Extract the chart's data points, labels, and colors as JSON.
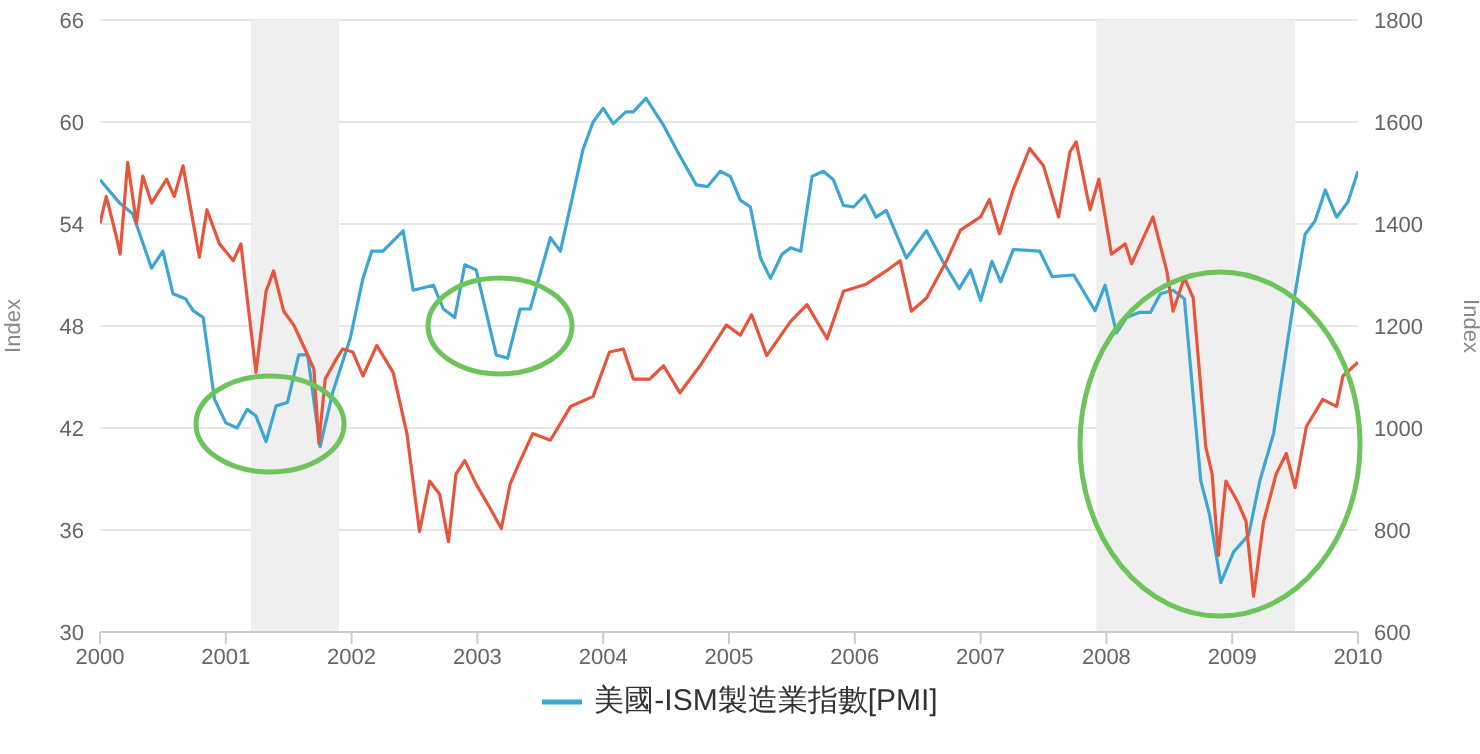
{
  "chart_data": {
    "type": "line",
    "ylabel": "Index",
    "y2label": "Index",
    "xlim": [
      2000,
      2010
    ],
    "xticks": [
      2000,
      2001,
      2002,
      2003,
      2004,
      2005,
      2006,
      2007,
      2008,
      2009,
      2010
    ],
    "ylim": [
      30,
      66
    ],
    "yticks": [
      30,
      36,
      42,
      48,
      54,
      60,
      66
    ],
    "y2lim": [
      600,
      1800
    ],
    "y2ticks": [
      600,
      800,
      1000,
      1200,
      1400,
      1600,
      1800
    ],
    "grid": "y",
    "legend": "bottom",
    "bands": [
      {
        "axis": "x",
        "from": 2001.2,
        "to": 2001.9,
        "color": "#efefef"
      },
      {
        "axis": "x",
        "from": 2007.92,
        "to": 2009.5,
        "color": "#efefef"
      }
    ],
    "series": [
      {
        "name": "美國-ISM製造業指數[PMI]",
        "color": "#3ea6d2",
        "x": [
          2000.0,
          2000.16,
          2000.26,
          2000.41,
          2000.5,
          2000.58,
          2000.68,
          2000.74,
          2000.82,
          2000.91,
          2001.0,
          2001.09,
          2001.17,
          2001.24,
          2001.32,
          2001.4,
          2001.49,
          2001.58,
          2001.65,
          2001.75,
          2001.85,
          2001.99,
          2002.09,
          2002.16,
          2002.25,
          2002.41,
          2002.49,
          2002.65,
          2002.73,
          2002.82,
          2002.9,
          2002.99,
          2003.15,
          2003.24,
          2003.34,
          2003.42,
          2003.58,
          2003.66,
          2003.84,
          2003.92,
          2004.0,
          2004.08,
          2004.18,
          2004.24,
          2004.34,
          2004.48,
          2004.61,
          2004.74,
          2004.83,
          2004.93,
          2005.01,
          2005.09,
          2005.17,
          2005.25,
          2005.33,
          2005.42,
          2005.49,
          2005.57,
          2005.66,
          2005.75,
          2005.83,
          2005.91,
          2005.99,
          2006.08,
          2006.17,
          2006.25,
          2006.41,
          2006.49,
          2006.57,
          2006.7,
          2006.83,
          2006.92,
          2007.0,
          2007.09,
          2007.16,
          2007.26,
          2007.47,
          2007.57,
          2007.74,
          2007.91,
          2007.99,
          2008.08,
          2008.16,
          2008.26,
          2008.35,
          2008.43,
          2008.53,
          2008.62,
          2008.75,
          2008.82,
          2008.91,
          2009.01,
          2009.13,
          2009.22,
          2009.33,
          2009.49,
          2009.58,
          2009.66,
          2009.74,
          2009.83,
          2009.92,
          2010.0
        ],
        "values": [
          56.6,
          55.2,
          54.6,
          51.4,
          52.4,
          49.9,
          49.6,
          48.9,
          48.5,
          43.7,
          42.3,
          42.0,
          43.1,
          42.7,
          41.2,
          43.3,
          43.5,
          46.3,
          46.3,
          40.9,
          44.1,
          47.3,
          50.8,
          52.4,
          52.4,
          53.6,
          50.1,
          50.4,
          49.0,
          48.5,
          51.6,
          51.3,
          46.3,
          46.1,
          49.0,
          49.0,
          53.2,
          52.4,
          58.4,
          60.0,
          60.8,
          59.9,
          60.6,
          60.6,
          61.4,
          59.8,
          58.0,
          56.3,
          56.2,
          57.1,
          56.8,
          55.4,
          55.0,
          52.0,
          50.8,
          52.2,
          52.6,
          52.4,
          56.8,
          57.1,
          56.6,
          55.1,
          55.0,
          55.7,
          54.4,
          54.8,
          52.0,
          52.8,
          53.6,
          51.8,
          50.2,
          51.3,
          49.5,
          51.8,
          50.6,
          52.5,
          52.4,
          50.9,
          51.0,
          48.9,
          50.4,
          47.6,
          48.5,
          48.8,
          48.8,
          49.9,
          50.1,
          49.6,
          38.9,
          36.9,
          32.9,
          34.7,
          35.7,
          38.9,
          41.7,
          49.5,
          53.4,
          54.2,
          56.0,
          54.4,
          55.3,
          57.1
        ]
      },
      {
        "color": "#e8553a",
        "axis": "y2",
        "x": [
          2000.0,
          2000.05,
          2000.13,
          2000.16,
          2000.22,
          2000.29,
          2000.34,
          2000.41,
          2000.53,
          2000.59,
          2000.66,
          2000.79,
          2000.85,
          2000.95,
          2001.06,
          2001.12,
          2001.17,
          2001.24,
          2001.32,
          2001.38,
          2001.46,
          2001.54,
          2001.64,
          2001.7,
          2001.74,
          2001.79,
          2001.88,
          2001.93,
          2002.01,
          2002.09,
          2002.2,
          2002.33,
          2002.44,
          2002.54,
          2002.62,
          2002.7,
          2002.77,
          2002.83,
          2002.9,
          2002.99,
          2003.1,
          2003.19,
          2003.26,
          2003.33,
          2003.44,
          2003.58,
          2003.74,
          2003.92,
          2004.05,
          2004.16,
          2004.24,
          2004.37,
          2004.48,
          2004.61,
          2004.77,
          2004.98,
          2005.09,
          2005.18,
          2005.3,
          2005.49,
          2005.62,
          2005.78,
          2005.91,
          2006.09,
          2006.25,
          2006.36,
          2006.45,
          2006.57,
          2006.73,
          2006.84,
          2007.0,
          2007.07,
          2007.15,
          2007.26,
          2007.39,
          2007.5,
          2007.62,
          2007.71,
          2007.76,
          2007.87,
          2007.94,
          2008.04,
          2008.15,
          2008.2,
          2008.37,
          2008.48,
          2008.53,
          2008.62,
          2008.69,
          2008.79,
          2008.84,
          2008.89,
          2008.95,
          2009.04,
          2009.11,
          2009.17,
          2009.25,
          2009.35,
          2009.43,
          2009.5,
          2009.59,
          2009.72,
          2009.83,
          2009.88,
          2010.0
        ],
        "values": [
          1401,
          1454,
          1375,
          1341,
          1521,
          1401,
          1494,
          1441,
          1488,
          1454,
          1514,
          1335,
          1428,
          1361,
          1328,
          1361,
          1255,
          1109,
          1268,
          1308,
          1229,
          1202,
          1149,
          1116,
          970,
          1096,
          1136,
          1155,
          1149,
          1102,
          1162,
          1109,
          989,
          797,
          896,
          870,
          777,
          910,
          936,
          890,
          843,
          803,
          890,
          930,
          989,
          976,
          1042,
          1062,
          1149,
          1155,
          1096,
          1096,
          1122,
          1069,
          1122,
          1202,
          1182,
          1222,
          1142,
          1209,
          1242,
          1175,
          1268,
          1282,
          1308,
          1328,
          1229,
          1255,
          1328,
          1388,
          1414,
          1448,
          1381,
          1468,
          1548,
          1514,
          1414,
          1541,
          1561,
          1428,
          1488,
          1341,
          1361,
          1322,
          1414,
          1308,
          1229,
          1295,
          1255,
          963,
          910,
          750,
          896,
          857,
          817,
          670,
          817,
          910,
          950,
          883,
          1003,
          1056,
          1042,
          1102,
          1129
        ]
      }
    ]
  }
}
